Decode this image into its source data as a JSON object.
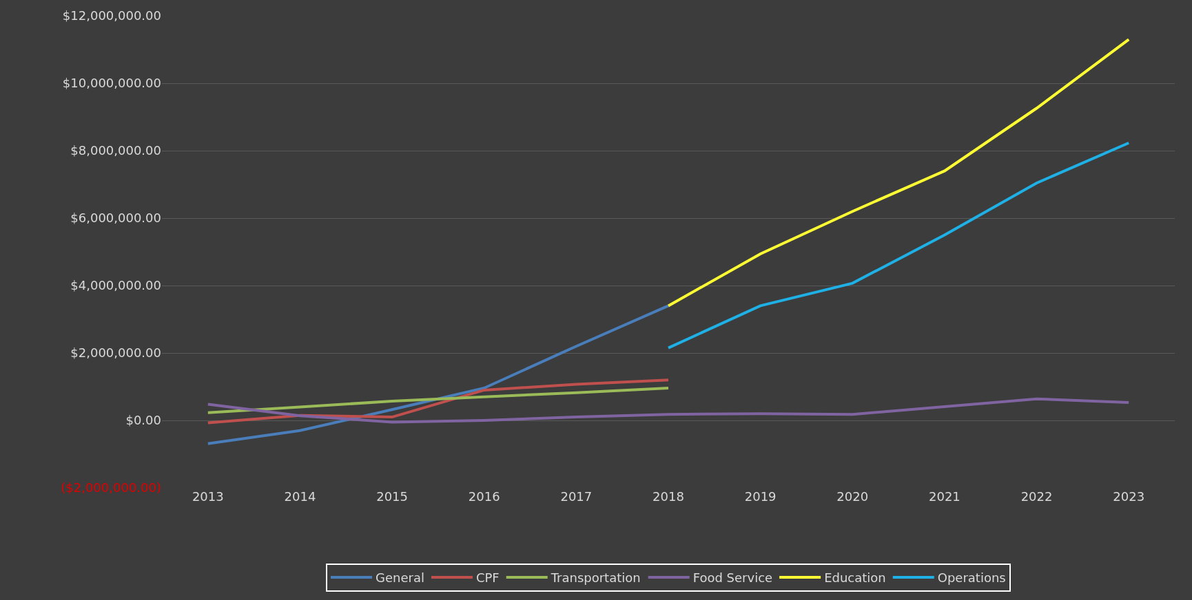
{
  "chart_data": {
    "type": "line",
    "categories": [
      "2013",
      "2014",
      "2015",
      "2016",
      "2017",
      "2018",
      "2019",
      "2020",
      "2021",
      "2022",
      "2023"
    ],
    "series": [
      {
        "name": "General",
        "color": "#4a7ebb",
        "values": [
          -690000,
          -300000,
          320000,
          960000,
          2200000,
          3400000,
          null,
          null,
          null,
          null,
          null
        ]
      },
      {
        "name": "CPF",
        "color": "#c0504d",
        "values": [
          -70000,
          150000,
          100000,
          900000,
          1070000,
          1200000,
          null,
          null,
          null,
          null,
          null
        ]
      },
      {
        "name": "Transportation",
        "color": "#9bbb59",
        "values": [
          230000,
          400000,
          570000,
          700000,
          820000,
          960000,
          null,
          null,
          null,
          null,
          null
        ]
      },
      {
        "name": "Food Service",
        "color": "#8064a2",
        "values": [
          480000,
          140000,
          -50000,
          0,
          100000,
          180000,
          200000,
          180000,
          410000,
          640000,
          530000
        ]
      },
      {
        "name": "Education",
        "color": "#ffff33",
        "values": [
          null,
          null,
          null,
          null,
          null,
          3400000,
          4940000,
          6200000,
          7400000,
          9260000,
          11300000
        ]
      },
      {
        "name": "Operations",
        "color": "#1fb0e6",
        "values": [
          null,
          null,
          null,
          null,
          null,
          2150000,
          3400000,
          4070000,
          5500000,
          7040000,
          8230000
        ]
      }
    ],
    "ylim": [
      -2000000,
      12000000
    ],
    "yticks": [
      {
        "value": -2000000,
        "label": "($2,000,000.00)"
      },
      {
        "value": 0,
        "label": "$0.00"
      },
      {
        "value": 2000000,
        "label": "$2,000,000.00"
      },
      {
        "value": 4000000,
        "label": "$4,000,000.00"
      },
      {
        "value": 6000000,
        "label": "$6,000,000.00"
      },
      {
        "value": 8000000,
        "label": "$8,000,000.00"
      },
      {
        "value": 10000000,
        "label": "$10,000,000.00"
      },
      {
        "value": 12000000,
        "label": "$12,000,000.00"
      }
    ],
    "grid": "y",
    "legend": "bottom",
    "marker": "none",
    "line_style": "solid"
  }
}
